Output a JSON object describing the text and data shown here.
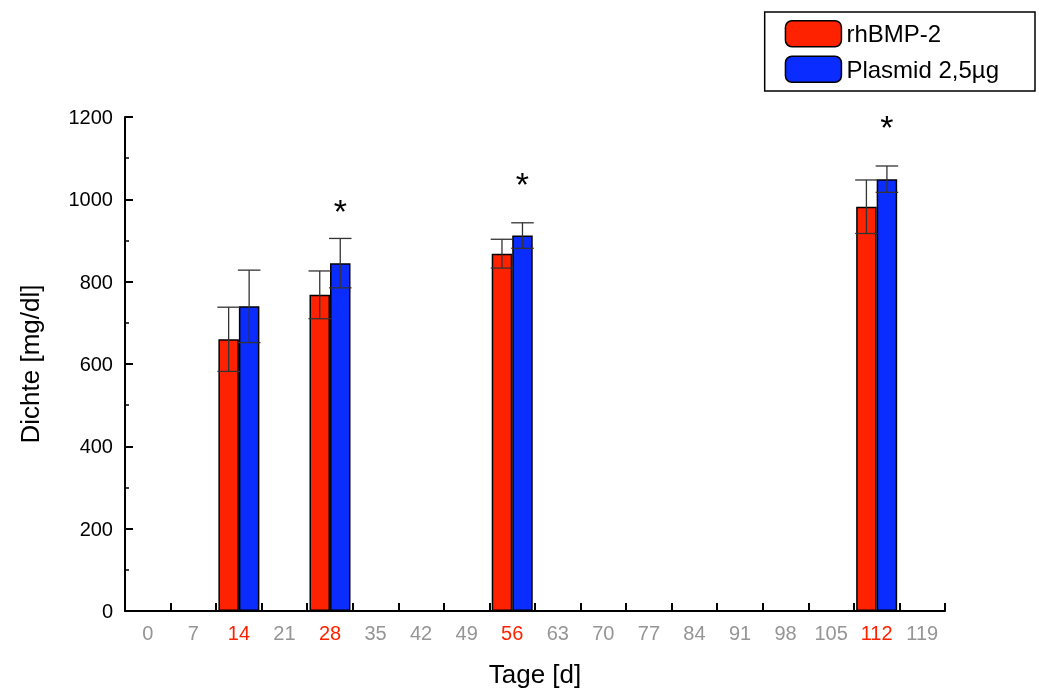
{
  "chart_data": {
    "type": "bar",
    "xlabel": "Tage [d]",
    "ylabel": "Dichte [mg/dl]",
    "categories": [
      "0",
      "7",
      "14",
      "21",
      "28",
      "35",
      "42",
      "49",
      "56",
      "63",
      "70",
      "77",
      "84",
      "91",
      "98",
      "105",
      "112",
      "119"
    ],
    "series": [
      {
        "name": "rhBMP-2",
        "color": "#ff2200",
        "values": [
          null,
          null,
          660,
          null,
          768,
          null,
          null,
          null,
          868,
          null,
          null,
          null,
          null,
          null,
          null,
          null,
          982,
          null
        ],
        "errors": [
          null,
          null,
          78,
          null,
          58,
          null,
          null,
          null,
          35,
          null,
          null,
          null,
          null,
          null,
          null,
          null,
          65,
          null
        ]
      },
      {
        "name": "Plasmid 2,5µg",
        "color": "#0a2cff",
        "values": [
          null,
          null,
          740,
          null,
          845,
          null,
          null,
          null,
          912,
          null,
          null,
          null,
          null,
          null,
          null,
          null,
          1049,
          null
        ],
        "errors": [
          null,
          null,
          88,
          null,
          60,
          null,
          null,
          null,
          31,
          null,
          null,
          null,
          null,
          null,
          null,
          null,
          32,
          null
        ]
      }
    ],
    "ylim": [
      0,
      1200
    ],
    "yticks": [
      0,
      200,
      400,
      600,
      800,
      1000,
      1200
    ],
    "grid": false,
    "legend": "top right",
    "annotations": [
      {
        "text": "*",
        "x": "28",
        "y": 845
      },
      {
        "text": "*",
        "x": "56",
        "y": 912
      },
      {
        "text": "*",
        "x": "112",
        "y": 1049
      }
    ]
  }
}
